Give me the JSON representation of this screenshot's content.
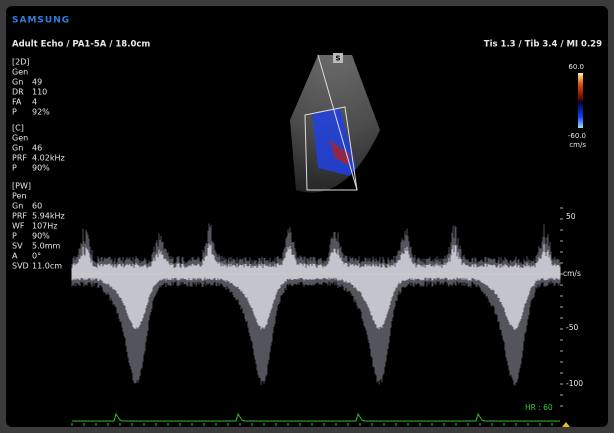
{
  "brand": "SAMSUNG",
  "header": {
    "left": "Adult Echo / PA1-5A / 18.0cm",
    "right": "Tis  1.3 / Tib  3.4 / MI  0.29"
  },
  "parameters": [
    {
      "header": "[2D]",
      "lines": [
        {
          "label": "Gen"
        },
        {
          "label": "Gn",
          "value": "49"
        },
        {
          "label": "DR",
          "value": "110"
        },
        {
          "label": "FA",
          "value": "4"
        },
        {
          "label": "P",
          "value": "92%"
        }
      ]
    },
    {
      "header": "[C]",
      "lines": [
        {
          "label": "Gen"
        },
        {
          "label": "Gn",
          "value": "46"
        },
        {
          "label": "PRF",
          "value": "4.02kHz"
        },
        {
          "label": "P",
          "value": "90%"
        }
      ]
    },
    {
      "header": "[PW]",
      "lines": [
        {
          "label": "Pen"
        },
        {
          "label": "Gn",
          "value": "60"
        },
        {
          "label": "PRF",
          "value": "5.94kHz"
        },
        {
          "label": "WF",
          "value": "107Hz"
        },
        {
          "label": "P",
          "value": "90%"
        },
        {
          "label": "SV",
          "value": "5.0mm"
        },
        {
          "label": "A",
          "value": "0°"
        },
        {
          "label": "SVD",
          "value": "11.0cm"
        }
      ]
    }
  ],
  "sector_marker": "S",
  "color_bar": {
    "max": "60.0",
    "min": "-60.0",
    "unit": "cm/s"
  },
  "doppler_scale": {
    "ticks": [
      "50",
      "-50",
      "-100"
    ],
    "unit": "cm/s"
  },
  "heart_rate": "HR : 60"
}
